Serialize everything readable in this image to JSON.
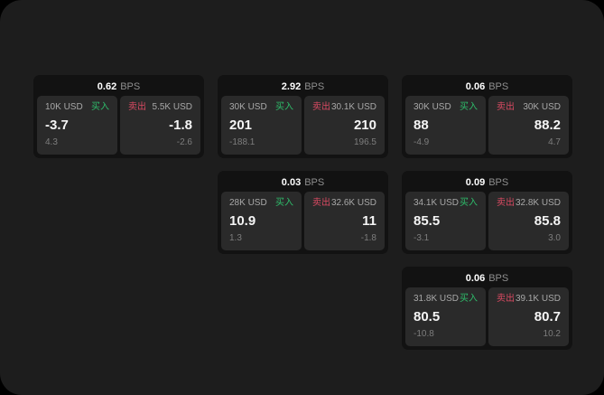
{
  "page": {
    "background": "#000000",
    "panel_background": "#1d1d1d",
    "card_background": "#121212",
    "subcard_background": "#2a2a2a"
  },
  "labels": {
    "bps_suffix": "BPS",
    "buy": "买入",
    "sell": "卖出"
  },
  "colors": {
    "buy_green": "#2ebd6b",
    "sell_red": "#d94a62",
    "value_white": "#f5f5f5",
    "muted_gray": "#7d7d7d"
  },
  "cards": [
    {
      "bps": "0.62",
      "buy": {
        "amount": "10K USD",
        "value": "-3.7",
        "delta": "4.3"
      },
      "sell": {
        "amount": "5.5K USD",
        "value": "-1.8",
        "delta": "-2.6"
      }
    },
    {
      "bps": "2.92",
      "buy": {
        "amount": "30K USD",
        "value": "201",
        "delta": "-188.1"
      },
      "sell": {
        "amount": "30.1K USD",
        "value": "210",
        "delta": "196.5"
      }
    },
    {
      "bps": "0.06",
      "buy": {
        "amount": "30K USD",
        "value": "88",
        "delta": "-4.9"
      },
      "sell": {
        "amount": "30K USD",
        "value": "88.2",
        "delta": "4.7"
      }
    },
    {
      "bps": "0.03",
      "buy": {
        "amount": "28K USD",
        "value": "10.9",
        "delta": "1.3"
      },
      "sell": {
        "amount": "32.6K USD",
        "value": "11",
        "delta": "-1.8"
      }
    },
    {
      "bps": "0.09",
      "buy": {
        "amount": "34.1K USD",
        "value": "85.5",
        "delta": "-3.1"
      },
      "sell": {
        "amount": "32.8K USD",
        "value": "85.8",
        "delta": "3.0"
      }
    },
    {
      "bps": "0.06",
      "buy": {
        "amount": "31.8K USD",
        "value": "80.5",
        "delta": "-10.8"
      },
      "sell": {
        "amount": "39.1K USD",
        "value": "80.7",
        "delta": "10.2"
      }
    }
  ]
}
